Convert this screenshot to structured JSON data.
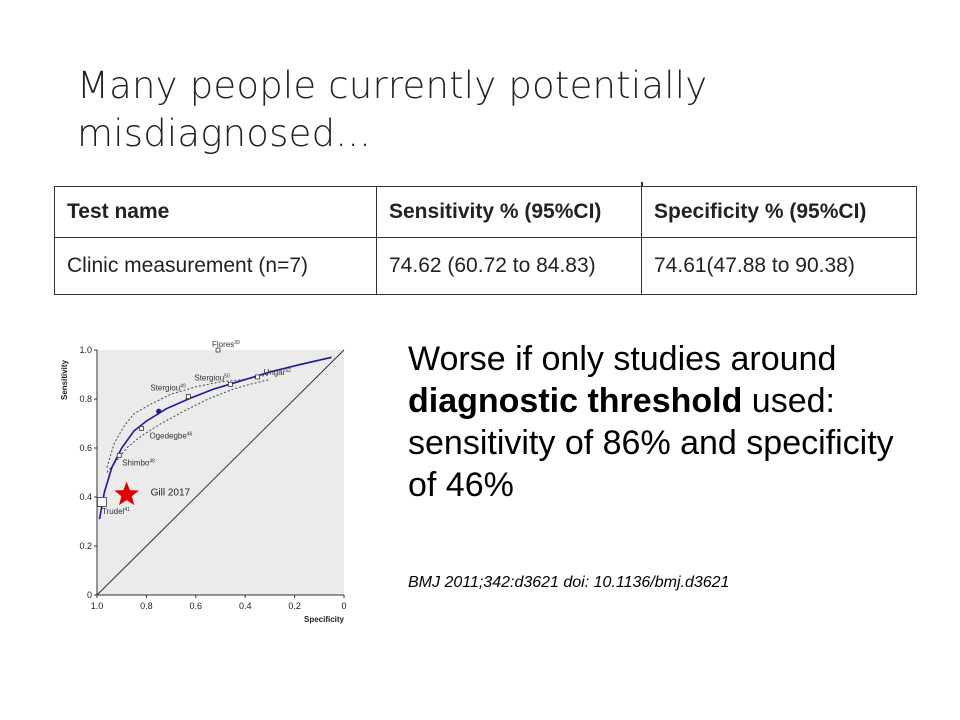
{
  "slide": {
    "title": "Many people currently potentially misdiagnosed...",
    "note_part1": "Worse if only studies around ",
    "note_bold": "diagnostic threshold",
    "note_part2": " used: sensitivity of 86% and specificity of 46%",
    "citation": "BMJ 2011;342:d3621  doi: 10.1136/bmj.d3621"
  },
  "table": {
    "headers": [
      "Test name",
      "Sensitivity % (95%CI)",
      "Specificity % (95%CI)"
    ],
    "rows": [
      [
        "Clinic measurement (n=7)",
        "74.62 (60.72 to 84.83)",
        "74.61(47.88 to 90.38)"
      ]
    ]
  },
  "chart_data": {
    "type": "scatter",
    "xlabel": "Specificity",
    "ylabel": "Sensitivity",
    "xlim": [
      1.0,
      0
    ],
    "ylim": [
      0,
      1.0
    ],
    "xticks": [
      "1.0",
      "0.8",
      "0.6",
      "0.4",
      "0.2",
      "0"
    ],
    "yticks": [
      "0",
      "0.2",
      "0.4",
      "0.6",
      "0.8",
      "1.0"
    ],
    "studies": [
      {
        "name": "Flores",
        "ref": "39",
        "x": 0.51,
        "y": 1.0
      },
      {
        "name": "Stergiou",
        "ref": "50",
        "x": 0.46,
        "y": 0.86
      },
      {
        "name": "Stergiou",
        "ref": "49",
        "x": 0.63,
        "y": 0.81
      },
      {
        "name": "Ungar",
        "ref": "52",
        "x": 0.35,
        "y": 0.89
      },
      {
        "name": "Ogedegbe",
        "ref": "46",
        "x": 0.82,
        "y": 0.68
      },
      {
        "name": "Shimbo",
        "ref": "48",
        "x": 0.91,
        "y": 0.57
      },
      {
        "name": "Trudel",
        "ref": "41",
        "x": 0.98,
        "y": 0.38
      }
    ],
    "summary_point": {
      "x": 0.75,
      "y": 0.75
    },
    "curve": [
      [
        0.99,
        0.31
      ],
      [
        0.97,
        0.42
      ],
      [
        0.94,
        0.52
      ],
      [
        0.9,
        0.6
      ],
      [
        0.85,
        0.67
      ],
      [
        0.8,
        0.71
      ],
      [
        0.72,
        0.76
      ],
      [
        0.63,
        0.8
      ],
      [
        0.53,
        0.84
      ],
      [
        0.43,
        0.87
      ],
      [
        0.3,
        0.91
      ],
      [
        0.18,
        0.94
      ],
      [
        0.05,
        0.97
      ]
    ],
    "ci_upper": [
      [
        0.96,
        0.52
      ],
      [
        0.93,
        0.62
      ],
      [
        0.89,
        0.69
      ],
      [
        0.85,
        0.74
      ],
      [
        0.78,
        0.78
      ],
      [
        0.7,
        0.82
      ],
      [
        0.6,
        0.85
      ],
      [
        0.5,
        0.87
      ],
      [
        0.4,
        0.88
      ],
      [
        0.3,
        0.9
      ]
    ],
    "ci_lower": [
      [
        0.96,
        0.5
      ],
      [
        0.92,
        0.55
      ],
      [
        0.88,
        0.6
      ],
      [
        0.82,
        0.65
      ],
      [
        0.74,
        0.7
      ],
      [
        0.65,
        0.75
      ],
      [
        0.55,
        0.8
      ],
      [
        0.45,
        0.84
      ],
      [
        0.38,
        0.86
      ],
      [
        0.3,
        0.88
      ]
    ],
    "annotation": {
      "label": "Gill 2017",
      "x": 0.88,
      "y": 0.41
    },
    "colors": {
      "curve": "#1a1aa0",
      "star": "#e00000",
      "panel": "#ebebeb"
    }
  }
}
